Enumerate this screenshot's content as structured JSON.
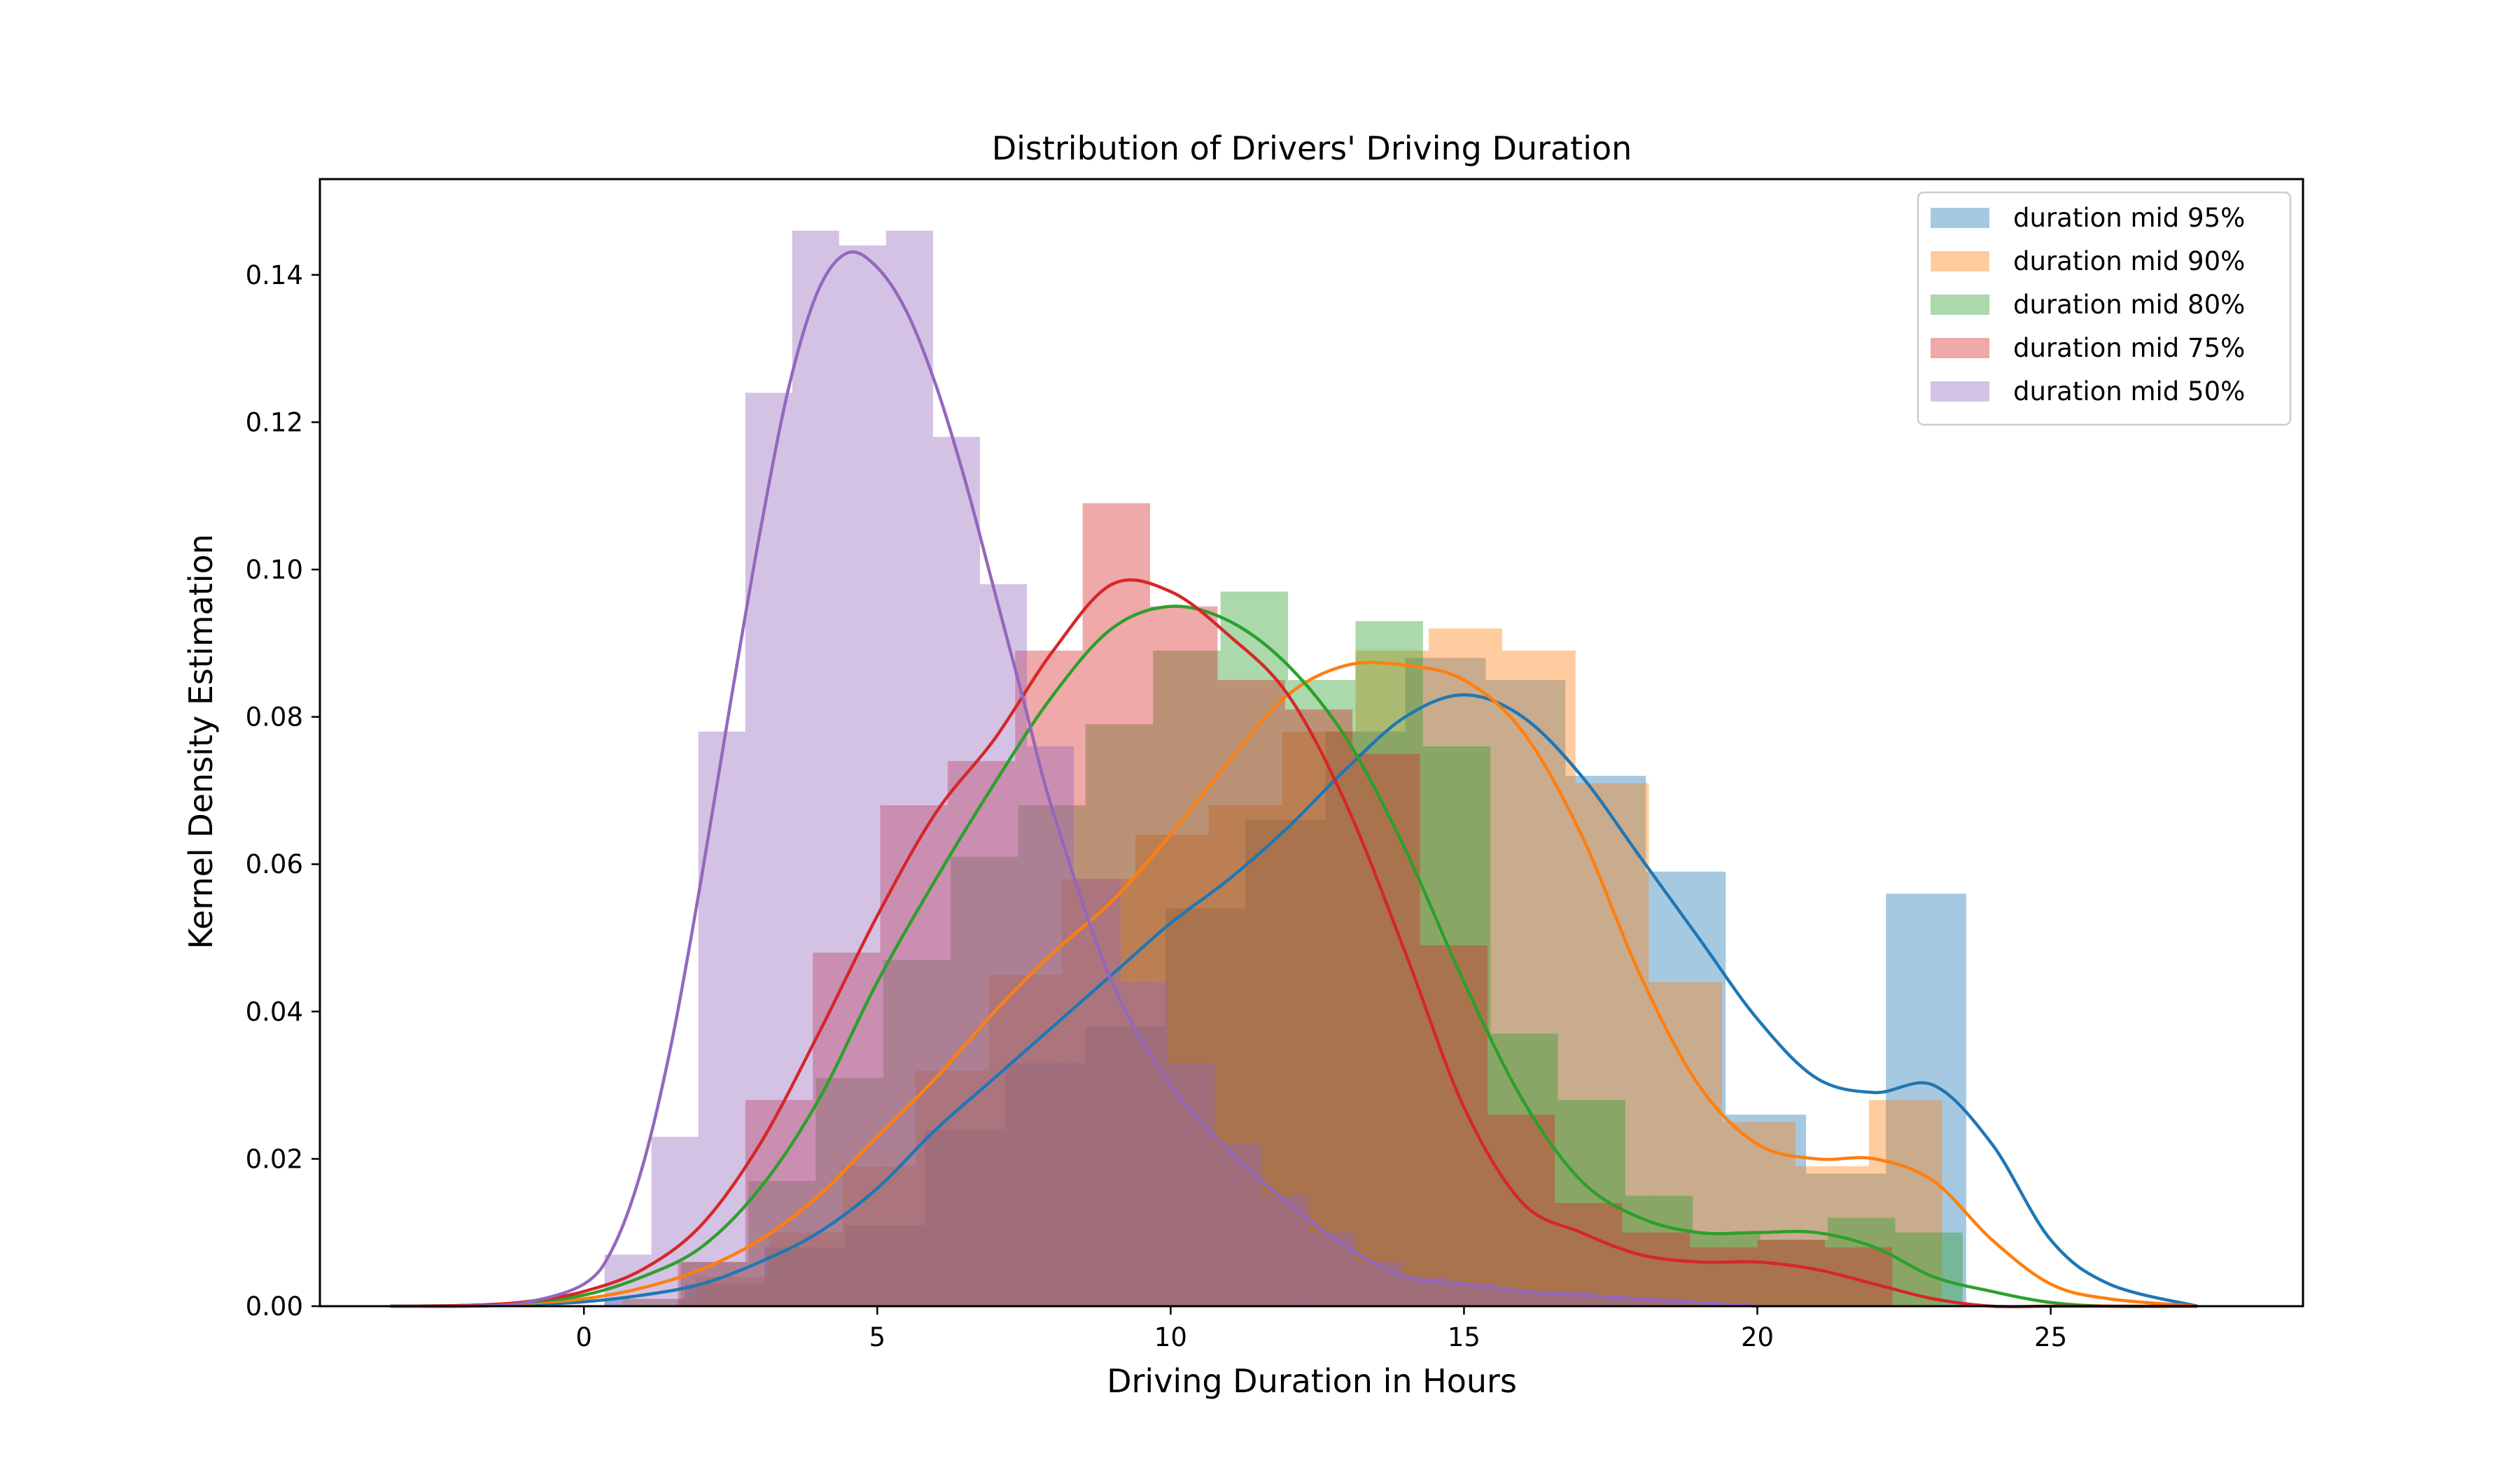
{
  "chart_data": {
    "type": "bar",
    "title": "Distribution of Drivers' Driving Duration",
    "xlabel": "Driving Duration in Hours",
    "ylabel": "Kernel Density Estimation",
    "xlim": [
      -4.5,
      29.3
    ],
    "ylim": [
      0,
      0.153
    ],
    "xticks": [
      0,
      5,
      10,
      15,
      20,
      25
    ],
    "yticks": [
      0.0,
      0.02,
      0.04,
      0.06,
      0.08,
      0.1,
      0.12,
      0.14
    ],
    "ytick_labels": [
      "0.00",
      "0.02",
      "0.04",
      "0.06",
      "0.08",
      "0.10",
      "0.12",
      "0.14"
    ],
    "grid": false,
    "legend_position": "top-right",
    "series": [
      {
        "name": "duration mid 95%",
        "color": "#1f77b4",
        "bin_edges": [
          0.35,
          1.72,
          3.08,
          4.45,
          5.81,
          7.18,
          8.54,
          9.91,
          11.27,
          12.64,
          14.0,
          15.37,
          16.73,
          18.1,
          19.46,
          20.83,
          22.19,
          23.56
        ],
        "densities": [
          0.001,
          0.003,
          0.008,
          0.011,
          0.024,
          0.033,
          0.038,
          0.054,
          0.066,
          0.078,
          0.088,
          0.085,
          0.072,
          0.059,
          0.026,
          0.018,
          0.056
        ],
        "kde_x": [
          -3.3,
          -2,
          -1,
          0,
          1,
          2,
          3,
          4,
          5,
          6,
          7,
          8,
          9,
          10,
          11,
          12,
          13,
          14,
          15,
          16,
          17,
          18,
          19,
          20,
          21,
          22,
          23,
          24,
          25,
          26,
          27.5
        ],
        "kde_y": [
          0,
          0,
          0.0002,
          0.0006,
          0.0015,
          0.003,
          0.006,
          0.01,
          0.016,
          0.024,
          0.031,
          0.038,
          0.045,
          0.052,
          0.058,
          0.065,
          0.073,
          0.08,
          0.083,
          0.08,
          0.072,
          0.061,
          0.05,
          0.039,
          0.031,
          0.029,
          0.03,
          0.022,
          0.009,
          0.003,
          0
        ]
      },
      {
        "name": "duration mid 90%",
        "color": "#ff7f0e",
        "bin_edges": [
          0.65,
          1.9,
          3.15,
          4.4,
          5.65,
          6.9,
          8.15,
          9.4,
          10.65,
          11.9,
          13.15,
          14.4,
          15.65,
          16.9,
          18.15,
          19.4,
          20.65,
          21.9,
          23.15
        ],
        "densities": [
          0.001,
          0.004,
          0.01,
          0.019,
          0.032,
          0.045,
          0.058,
          0.064,
          0.068,
          0.078,
          0.089,
          0.092,
          0.089,
          0.071,
          0.044,
          0.025,
          0.019,
          0.028
        ],
        "kde_x": [
          -3.3,
          -2,
          -1,
          0,
          1,
          2,
          3,
          4,
          5,
          6,
          7,
          8,
          9,
          10,
          11,
          12,
          13,
          14,
          15,
          16,
          17,
          18,
          19,
          20,
          21,
          22,
          23,
          24,
          25,
          26,
          27.5
        ],
        "kde_y": [
          0,
          0.0001,
          0.0004,
          0.001,
          0.0025,
          0.005,
          0.009,
          0.015,
          0.023,
          0.031,
          0.04,
          0.048,
          0.055,
          0.064,
          0.074,
          0.083,
          0.087,
          0.087,
          0.085,
          0.078,
          0.064,
          0.045,
          0.03,
          0.022,
          0.02,
          0.02,
          0.017,
          0.009,
          0.003,
          0.001,
          0
        ]
      },
      {
        "name": "duration mid 80%",
        "color": "#2ca02c",
        "bin_edges": [
          1.65,
          2.8,
          3.95,
          5.1,
          6.25,
          7.4,
          8.55,
          9.7,
          10.85,
          12.0,
          13.15,
          14.3,
          15.45,
          16.6,
          17.75,
          18.9,
          20.05,
          21.2,
          22.35,
          23.5
        ],
        "densities": [
          0.006,
          0.017,
          0.031,
          0.047,
          0.061,
          0.068,
          0.079,
          0.089,
          0.097,
          0.085,
          0.093,
          0.076,
          0.037,
          0.028,
          0.015,
          0.01,
          0.009,
          0.012,
          0.01
        ],
        "kde_x": [
          -3.3,
          -2,
          -1,
          0,
          1,
          2,
          3,
          4,
          5,
          6,
          7,
          8,
          9,
          10,
          11,
          12,
          13,
          14,
          15,
          16,
          17,
          18,
          19,
          20,
          21,
          22,
          23,
          24,
          25,
          26,
          27.5
        ],
        "kde_y": [
          0,
          0.0001,
          0.0005,
          0.0015,
          0.004,
          0.008,
          0.016,
          0.028,
          0.044,
          0.058,
          0.071,
          0.083,
          0.092,
          0.095,
          0.093,
          0.087,
          0.077,
          0.062,
          0.044,
          0.028,
          0.017,
          0.012,
          0.01,
          0.01,
          0.01,
          0.008,
          0.004,
          0.002,
          0.0005,
          0,
          0
        ]
      },
      {
        "name": "duration mid 75%",
        "color": "#d62728",
        "bin_edges": [
          1.6,
          2.75,
          3.9,
          5.05,
          6.2,
          7.35,
          8.5,
          9.65,
          10.8,
          11.95,
          13.1,
          14.25,
          15.4,
          16.55,
          17.7,
          18.85,
          20.0,
          21.15,
          22.3
        ],
        "densities": [
          0.006,
          0.028,
          0.048,
          0.068,
          0.074,
          0.089,
          0.109,
          0.095,
          0.085,
          0.081,
          0.075,
          0.049,
          0.026,
          0.014,
          0.01,
          0.008,
          0.009,
          0.008
        ],
        "kde_x": [
          -3.3,
          -2,
          -1,
          0,
          1,
          2,
          3,
          4,
          5,
          6,
          7,
          8,
          9,
          10,
          11,
          12,
          13,
          14,
          15,
          16,
          17,
          18,
          19,
          20,
          21,
          22,
          23,
          24,
          25,
          26,
          27.5
        ],
        "kde_y": [
          0,
          0.0001,
          0.0006,
          0.002,
          0.005,
          0.011,
          0.022,
          0.037,
          0.053,
          0.067,
          0.077,
          0.089,
          0.098,
          0.097,
          0.091,
          0.083,
          0.068,
          0.048,
          0.027,
          0.014,
          0.01,
          0.007,
          0.006,
          0.006,
          0.005,
          0.003,
          0.001,
          0,
          0,
          0,
          0
        ]
      },
      {
        "name": "duration mid 50%",
        "color": "#9467bd",
        "bin_edges": [
          0.35,
          1.15,
          1.95,
          2.75,
          3.55,
          4.35,
          5.15,
          5.95,
          6.75,
          7.55,
          8.35,
          9.15,
          9.95,
          10.75,
          11.55,
          12.35,
          13.15,
          13.95,
          14.75,
          15.55,
          16.35,
          17.15,
          17.95,
          18.75
        ],
        "densities": [
          0.007,
          0.023,
          0.078,
          0.124,
          0.146,
          0.144,
          0.146,
          0.118,
          0.098,
          0.076,
          0.058,
          0.044,
          0.033,
          0.022,
          0.015,
          0.01,
          0.006,
          0.004,
          0.003,
          0.002,
          0.002,
          0.001,
          0.001
        ],
        "kde_x": [
          -3.3,
          -2,
          -1,
          0,
          0.5,
          1,
          1.5,
          2,
          2.5,
          3,
          3.5,
          4,
          4.5,
          5,
          5.5,
          6,
          6.5,
          7,
          7.5,
          8,
          9,
          10,
          11,
          12,
          13,
          14,
          15,
          16,
          17,
          18,
          19,
          20
        ],
        "kde_y": [
          0,
          0,
          0.0005,
          0.003,
          0.008,
          0.019,
          0.036,
          0.058,
          0.082,
          0.105,
          0.125,
          0.138,
          0.143,
          0.141,
          0.135,
          0.125,
          0.112,
          0.097,
          0.082,
          0.067,
          0.044,
          0.03,
          0.021,
          0.014,
          0.008,
          0.004,
          0.003,
          0.002,
          0.0015,
          0.001,
          0.0005,
          0
        ]
      }
    ]
  }
}
